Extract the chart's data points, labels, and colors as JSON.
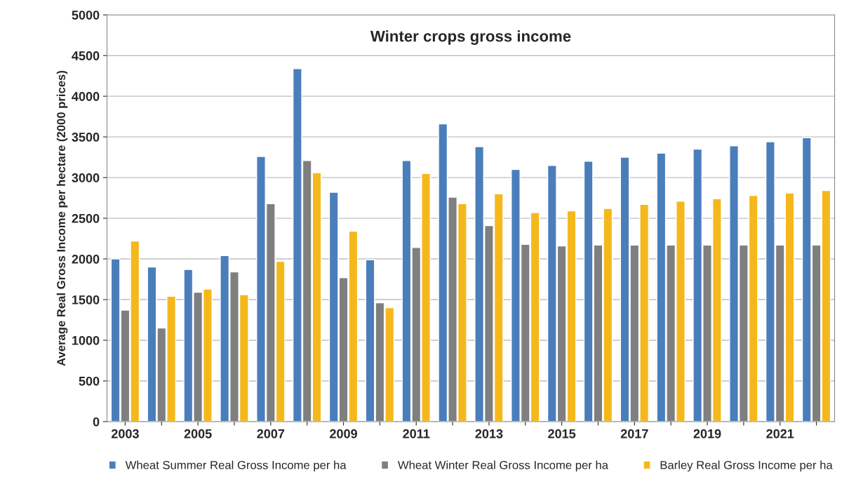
{
  "chart_data": {
    "type": "bar",
    "title": "Winter crops gross income",
    "ylabel": "Average Real Gross Income per hectare (2000 prices)",
    "categories": [
      "2003",
      null,
      "2005",
      null,
      "2007",
      null,
      "2009",
      null,
      "2011",
      null,
      "2013",
      null,
      "2015",
      null,
      "2017",
      null,
      "2019",
      null,
      "2021",
      null
    ],
    "series": [
      {
        "name": "Wheat Summer Real Gross Income per ha",
        "color": "#4a7ebb",
        "values": [
          2000,
          1900,
          1870,
          2040,
          3260,
          4340,
          2820,
          1990,
          3210,
          3660,
          3380,
          3100,
          3150,
          3200,
          3250,
          3300,
          3350,
          3390,
          3440,
          3490
        ]
      },
      {
        "name": "Wheat Winter Real Gross Income per ha",
        "color": "#7f7f7f",
        "values": [
          1370,
          1150,
          1590,
          1840,
          2680,
          3210,
          1770,
          1460,
          2140,
          2760,
          2410,
          2180,
          2160,
          2170,
          2170,
          2170,
          2170,
          2170,
          2170,
          2170
        ]
      },
      {
        "name": "Barley Real Gross Income per ha",
        "color": "#f5b81c",
        "values": [
          2220,
          1540,
          1630,
          1560,
          1970,
          3060,
          2340,
          1400,
          3050,
          2680,
          2800,
          2570,
          2590,
          2620,
          2670,
          2710,
          2740,
          2780,
          2810,
          2840
        ]
      }
    ],
    "ylim": [
      0,
      5000
    ],
    "yticks": [
      0,
      500,
      1000,
      1500,
      2000,
      2500,
      3000,
      3500,
      4000,
      4500,
      5000
    ],
    "grid": "y",
    "legend": "bottom"
  }
}
